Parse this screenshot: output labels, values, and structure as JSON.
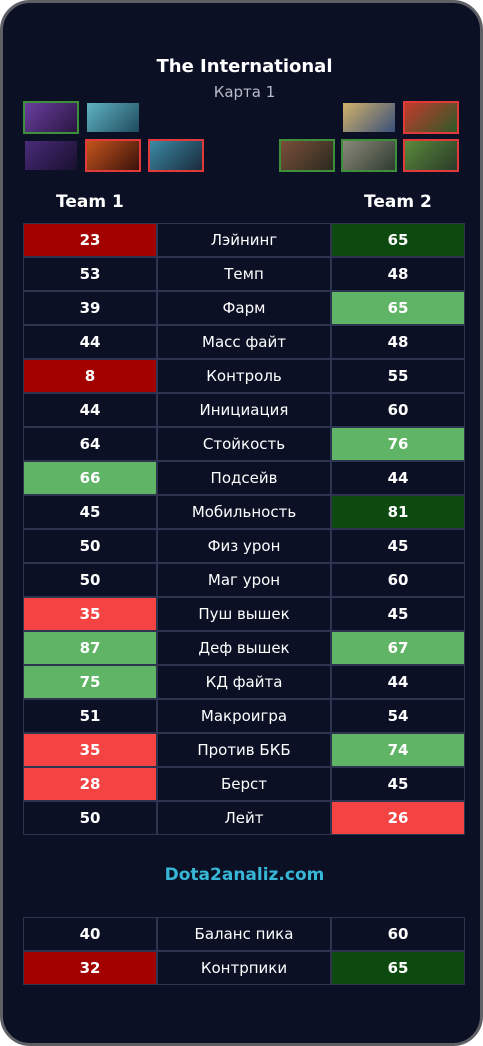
{
  "header": {
    "title": "The International",
    "subtitle": "Карта 1"
  },
  "team1": {
    "label": "Team 1",
    "heroes": [
      {
        "name": "purple-hero-icon",
        "border": "green",
        "bg": [
          "#6a3fa0",
          "#2a1640"
        ]
      },
      {
        "name": "ice-dragon-hero-icon",
        "border": "none",
        "bg": [
          "#5fb4c4",
          "#1f4a5c"
        ]
      },
      {
        "name": "dark-purple-hero-icon",
        "border": "none",
        "bg": [
          "#4a2c7a",
          "#180f2e"
        ]
      },
      {
        "name": "fire-hero-icon",
        "border": "red",
        "bg": [
          "#c4541d",
          "#3a120a"
        ]
      },
      {
        "name": "teal-hero-icon",
        "border": "red",
        "bg": [
          "#3b8aa6",
          "#1a2a3a"
        ]
      }
    ]
  },
  "team2": {
    "label": "Team 2",
    "heroes": [
      {
        "name": "golden-hero-icon",
        "border": "none",
        "bg": [
          "#d2b36a",
          "#3a4f7a"
        ]
      },
      {
        "name": "red-hair-hero-icon",
        "border": "red",
        "bg": [
          "#c23a2a",
          "#2f5a2a"
        ]
      },
      {
        "name": "brute-hero-icon",
        "border": "green",
        "bg": [
          "#7a4f3a",
          "#2a2a1f"
        ]
      },
      {
        "name": "warrior-hero-icon",
        "border": "green",
        "bg": [
          "#8a8a7a",
          "#2f3a2f"
        ]
      },
      {
        "name": "green-beast-hero-icon",
        "border": "red",
        "bg": [
          "#5a8a3a",
          "#2a3a2a"
        ]
      }
    ]
  },
  "stats": [
    {
      "label": "Лэйнинг",
      "left": "23",
      "right": "65",
      "left_color": "#a30000",
      "right_color": "#0c4a10"
    },
    {
      "label": "Темп",
      "left": "53",
      "right": "48",
      "left_color": "",
      "right_color": ""
    },
    {
      "label": "Фарм",
      "left": "39",
      "right": "65",
      "left_color": "",
      "right_color": "#5fb565"
    },
    {
      "label": "Масс файт",
      "left": "44",
      "right": "48",
      "left_color": "",
      "right_color": ""
    },
    {
      "label": "Контроль",
      "left": "8",
      "right": "55",
      "left_color": "#a30000",
      "right_color": ""
    },
    {
      "label": "Инициация",
      "left": "44",
      "right": "60",
      "left_color": "",
      "right_color": ""
    },
    {
      "label": "Стойкость",
      "left": "64",
      "right": "76",
      "left_color": "",
      "right_color": "#5fb565"
    },
    {
      "label": "Подсейв",
      "left": "66",
      "right": "44",
      "left_color": "#5fb565",
      "right_color": ""
    },
    {
      "label": "Мобильность",
      "left": "45",
      "right": "81",
      "left_color": "",
      "right_color": "#0c4a10"
    },
    {
      "label": "Физ урон",
      "left": "50",
      "right": "45",
      "left_color": "",
      "right_color": ""
    },
    {
      "label": "Маг урон",
      "left": "50",
      "right": "60",
      "left_color": "",
      "right_color": ""
    },
    {
      "label": "Пуш вышек",
      "left": "35",
      "right": "45",
      "left_color": "#f44343",
      "right_color": ""
    },
    {
      "label": "Деф вышек",
      "left": "87",
      "right": "67",
      "left_color": "#5fb565",
      "right_color": "#5fb565"
    },
    {
      "label": "КД файта",
      "left": "75",
      "right": "44",
      "left_color": "#5fb565",
      "right_color": ""
    },
    {
      "label": "Макроигра",
      "left": "51",
      "right": "54",
      "left_color": "",
      "right_color": ""
    },
    {
      "label": "Против БКБ",
      "left": "35",
      "right": "74",
      "left_color": "#f44343",
      "right_color": "#5fb565"
    },
    {
      "label": "Берст",
      "left": "28",
      "right": "45",
      "left_color": "#f44343",
      "right_color": ""
    },
    {
      "label": "Лейт",
      "left": "50",
      "right": "26",
      "left_color": "",
      "right_color": "#f44343"
    }
  ],
  "site": "Dota2analiz.com",
  "summary": [
    {
      "label": "Баланс пика",
      "left": "40",
      "right": "60",
      "left_color": "",
      "right_color": ""
    },
    {
      "label": "Контрпики",
      "left": "32",
      "right": "65",
      "left_color": "#a30000",
      "right_color": "#0c4a10"
    }
  ]
}
